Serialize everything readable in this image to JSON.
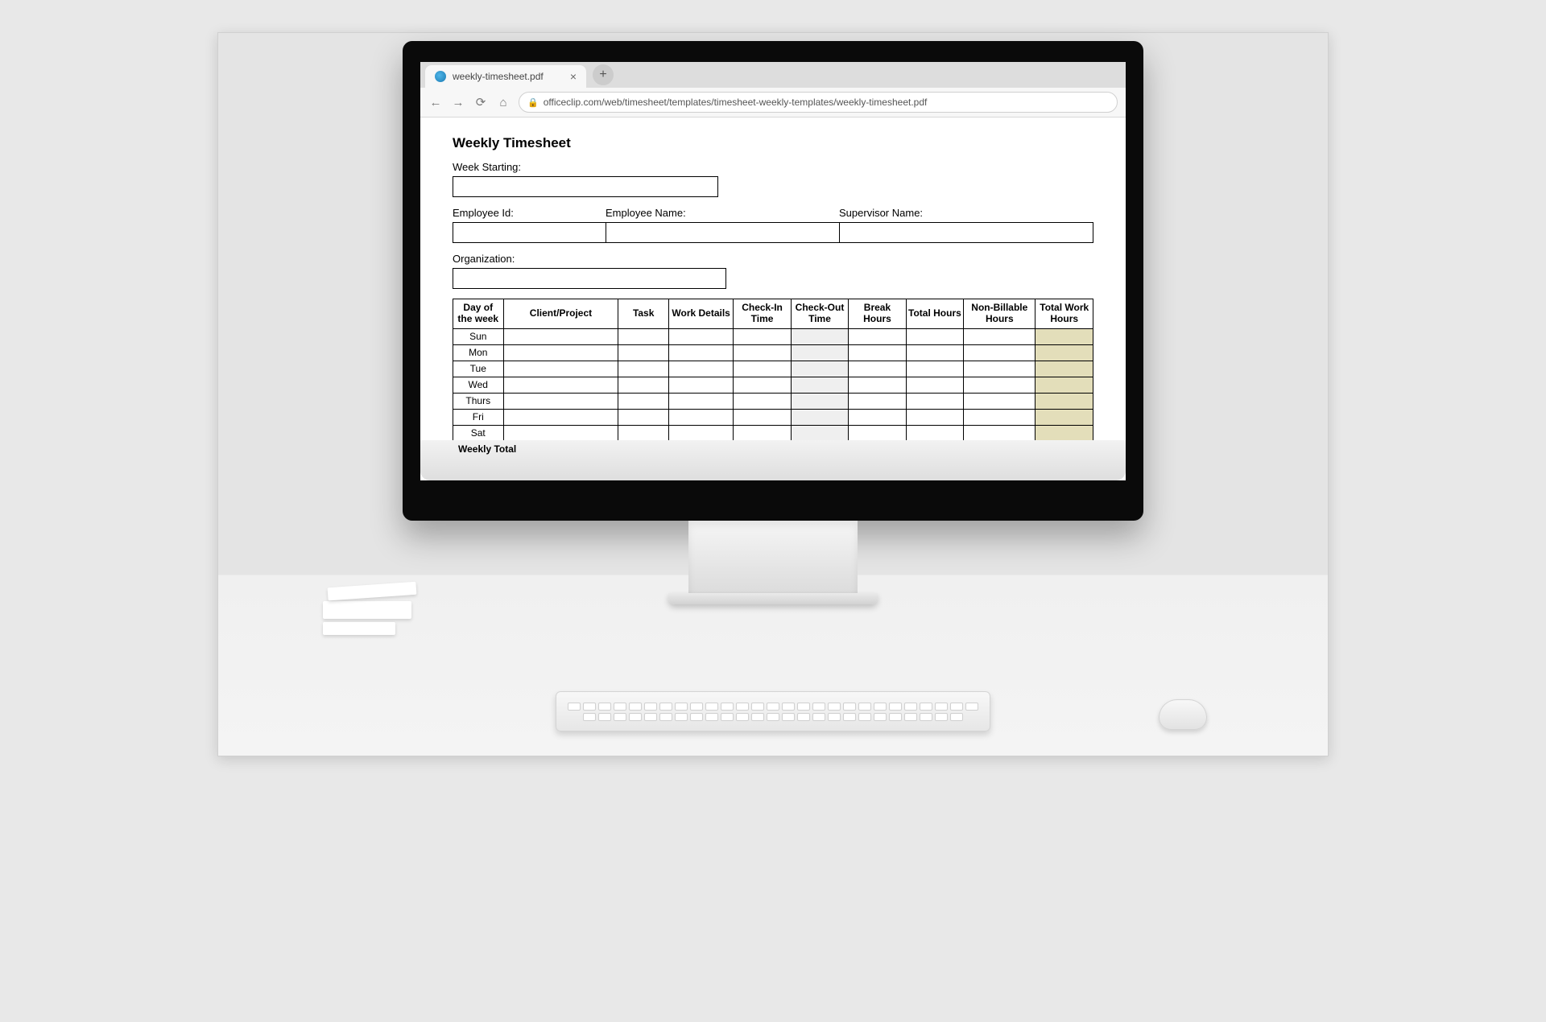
{
  "browser": {
    "tab_title": "weekly-timesheet.pdf",
    "url": "officeclip.com/web/timesheet/templates/timesheet-weekly-templates/weekly-timesheet.pdf"
  },
  "document": {
    "title": "Weekly Timesheet",
    "labels": {
      "week_starting": "Week Starting:",
      "employee_id": "Employee Id:",
      "employee_name": "Employee Name:",
      "supervisor_name": "Supervisor Name:",
      "organization": "Organization:"
    },
    "table": {
      "columns": [
        "Day of the week",
        "Client/Project",
        "Task",
        "Work Details",
        "Check-In Time",
        "Check-Out Time",
        "Break Hours",
        "Total Hours",
        "Non-Billable Hours",
        "Total Work Hours"
      ],
      "days": [
        "Sun",
        "Mon",
        "Tue",
        "Wed",
        "Thurs",
        "Fri",
        "Sat"
      ],
      "shaded_column_index": 5,
      "tan_column_index": 9,
      "shaded_color": "#efefef",
      "tan_color": "#e3deba",
      "border_color": "#000000",
      "total_row_label": "Weekly Total"
    }
  },
  "colors": {
    "background": "#e8e8e8",
    "bezel": "#0a0a0a",
    "chrome": "#f1f1f1",
    "text": "#000000"
  }
}
